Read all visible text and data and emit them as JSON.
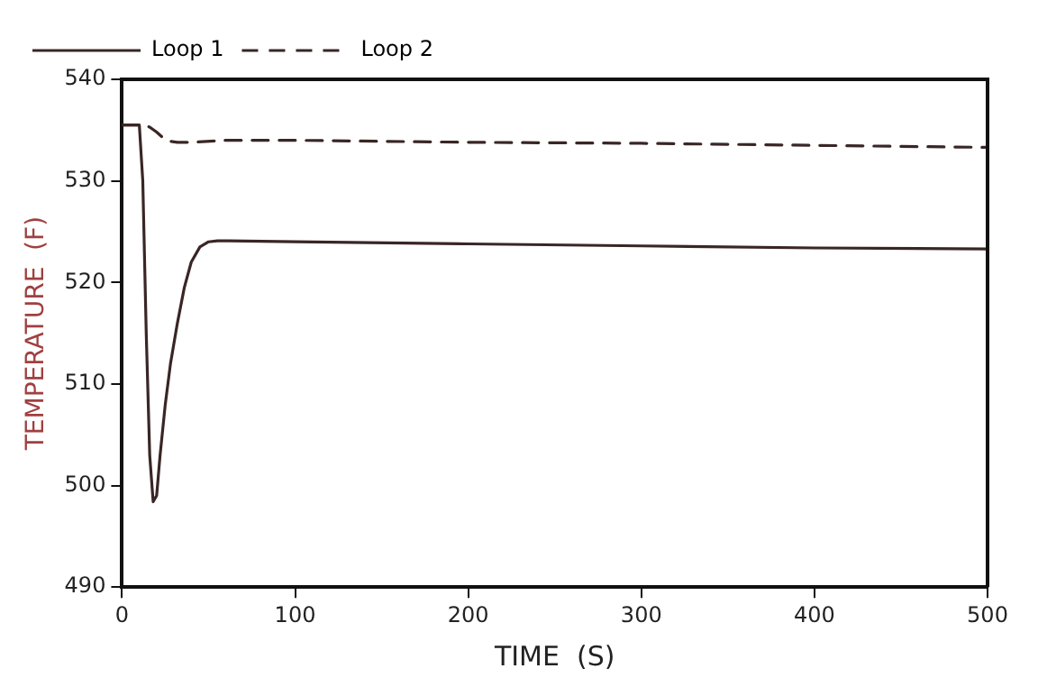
{
  "chart_data": {
    "type": "line",
    "xlabel": "TIME  (S)",
    "ylabel": "TEMPERATURE  (F)",
    "xlim": [
      0,
      500
    ],
    "ylim": [
      490,
      540
    ],
    "xticks": [
      0,
      100,
      200,
      300,
      400,
      500
    ],
    "yticks": [
      490,
      500,
      510,
      520,
      530,
      540
    ],
    "grid": false,
    "legend": "top left",
    "marker": "none",
    "series": [
      {
        "name": "Loop 1",
        "color": "#3a2626",
        "line_style": "solid",
        "x": [
          0,
          10,
          12,
          14,
          16,
          18,
          20,
          22,
          25,
          28,
          32,
          36,
          40,
          45,
          50,
          55,
          60,
          100,
          200,
          300,
          400,
          500
        ],
        "values": [
          535.5,
          535.5,
          530,
          515,
          503,
          498.4,
          499,
          503,
          508,
          512,
          516,
          519.5,
          522,
          523.5,
          524,
          524.1,
          524.1,
          524,
          523.8,
          523.6,
          523.4,
          523.3
        ]
      },
      {
        "name": "Loop 2",
        "color": "#3a2626",
        "line_style": "dashed",
        "x": [
          0,
          12,
          16,
          20,
          24,
          28,
          32,
          40,
          60,
          100,
          200,
          300,
          400,
          500
        ],
        "values": [
          535.5,
          535.5,
          535.3,
          534.8,
          534.2,
          533.9,
          533.8,
          533.8,
          534,
          534,
          533.8,
          533.7,
          533.5,
          533.3
        ]
      }
    ]
  }
}
